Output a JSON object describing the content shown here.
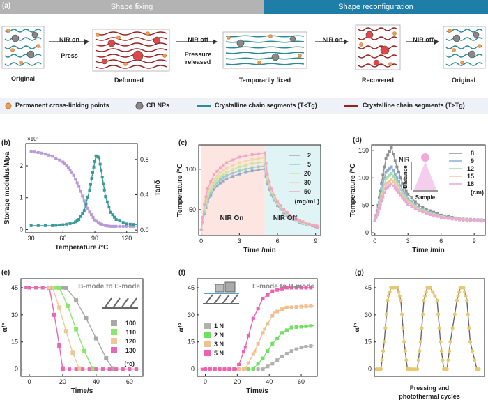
{
  "header": {
    "panel_a": "(a)",
    "left_title": "Shape fixing",
    "right_title": "Shape reconfiguration",
    "left_color": "#b3b3b3",
    "right_color": "#1e7ea8"
  },
  "schematic": {
    "stages": [
      "Original",
      "Deformed",
      "Temporarily fixed",
      "Recovered",
      "Original"
    ],
    "arrows": [
      {
        "line1": "NIR on",
        "line2": "Press"
      },
      {
        "line1": "NIR off",
        "line2": "Pressure",
        "line3": "released"
      },
      {
        "line1": "NIR on",
        "line2": ""
      },
      {
        "line1": "NIR off",
        "line2": ""
      }
    ]
  },
  "legend": {
    "items": [
      "Permanent cross-linking points",
      "CB NPs",
      "Crystalline chain segments (T<Tg)",
      "Crystalline chain segments (T>Tg)"
    ],
    "colors": [
      "#f0a050",
      "#888888",
      "#2a8c99",
      "#9a2020"
    ]
  },
  "panels": {
    "b": {
      "letter": "(b)",
      "ylabel": "Storage modulus/Mpa",
      "y2label": "Tanδ",
      "xlabel": "Temperature /°C",
      "exp": "×10³",
      "xticks": [
        "30",
        "60",
        "90",
        "120"
      ],
      "yticks": [
        "0",
        "1",
        "2"
      ],
      "y2ticks": [
        "0.0",
        "0.4",
        "0.8"
      ]
    },
    "c": {
      "letter": "(c)",
      "ylabel": "Temperature /°C",
      "xlabel": "Time /min",
      "xticks": [
        "0",
        "3",
        "6",
        "9"
      ],
      "yticks": [
        "50",
        "100"
      ],
      "on_label": "NIR On",
      "off_label": "NIR Off",
      "legend": [
        "2",
        "5",
        "20",
        "30",
        "50"
      ],
      "units": "(mg/mL)"
    },
    "d": {
      "letter": "(d)",
      "ylabel": "Temperature /°C",
      "xlabel": "Time /min",
      "xticks": [
        "0",
        "3",
        "6",
        "9"
      ],
      "yticks": [
        "0",
        "50",
        "100",
        "150"
      ],
      "legend": [
        "8",
        "9",
        "12",
        "15",
        "18"
      ],
      "units": "(cm)",
      "nir": "NIR",
      "distance": "Distance",
      "sample": "Sample"
    },
    "e": {
      "letter": "(e)",
      "ylabel": "α/°",
      "xlabel": "Time/s",
      "xticks": [
        "0",
        "20",
        "40",
        "60"
      ],
      "yticks": [
        "0",
        "15",
        "30",
        "45"
      ],
      "title": "B-mode to E-mode",
      "legend": [
        "100",
        "110",
        "120",
        "130"
      ],
      "units": "(°c)"
    },
    "f": {
      "letter": "(f)",
      "ylabel": "α/°",
      "xlabel": "Time/s",
      "xticks": [
        "0",
        "20",
        "40",
        "60"
      ],
      "yticks": [
        "0",
        "15",
        "30",
        "45"
      ],
      "title": "E-mode to B-mode",
      "legend": [
        "1 N",
        "2 N",
        "3 N",
        "5 N"
      ]
    },
    "g": {
      "letter": "(g)",
      "ylabel": "α/°",
      "yticks": [
        "0",
        "15",
        "30",
        "45"
      ],
      "caption1": "Pressing and",
      "caption2": "photothermal cycles"
    }
  },
  "chart_data": [
    {
      "panel": "b",
      "type": "line",
      "xlabel": "Temperature /°C",
      "ylabel": "Storage modulus/Mpa (×10³)",
      "y2label": "Tanδ",
      "xlim": [
        25,
        130
      ],
      "ylim": [
        -0.1,
        2.7
      ],
      "y2lim": [
        -0.03,
        0.98
      ],
      "series": [
        {
          "name": "Storage modulus",
          "axis": "left",
          "color": "#b89ad6",
          "x": [
            30,
            40,
            50,
            60,
            65,
            70,
            75,
            80,
            85,
            90,
            95,
            100,
            105,
            110,
            120,
            130
          ],
          "y": [
            2.45,
            2.4,
            2.3,
            2.12,
            1.95,
            1.7,
            1.35,
            0.9,
            0.55,
            0.3,
            0.18,
            0.12,
            0.1,
            0.1,
            0.1,
            0.1
          ]
        },
        {
          "name": "Tanδ",
          "axis": "right",
          "color": "#3a9a9a",
          "x": [
            30,
            50,
            60,
            70,
            75,
            80,
            85,
            88,
            91,
            94,
            97,
            100,
            105,
            110,
            120,
            130
          ],
          "y": [
            0.05,
            0.05,
            0.06,
            0.08,
            0.12,
            0.22,
            0.45,
            0.65,
            0.84,
            0.82,
            0.6,
            0.38,
            0.2,
            0.12,
            0.07,
            0.06
          ]
        }
      ]
    },
    {
      "panel": "c",
      "type": "line",
      "xlabel": "Time /min",
      "ylabel": "Temperature /°C",
      "xlim": [
        -0.2,
        9.4
      ],
      "ylim": [
        18,
        130
      ],
      "x": [
        0,
        0.25,
        0.5,
        1,
        1.5,
        2,
        3,
        4,
        5,
        5.2,
        5.5,
        6,
        6.5,
        7,
        7.5,
        8,
        8.5,
        9,
        9.3
      ],
      "series": [
        {
          "name": "2",
          "color": "#98a8c8",
          "y": [
            25,
            45,
            60,
            75,
            83,
            88,
            94,
            98,
            100,
            82,
            68,
            55,
            46,
            40,
            36,
            33,
            31,
            29,
            28
          ]
        },
        {
          "name": "5",
          "color": "#9ad0c8",
          "y": [
            25,
            47,
            63,
            79,
            87,
            92,
            98,
            102,
            104,
            85,
            70,
            56,
            47,
            41,
            37,
            34,
            31,
            30,
            29
          ]
        },
        {
          "name": "20",
          "color": "#c8e6a0",
          "y": [
            25,
            50,
            67,
            83,
            91,
            96,
            103,
            107,
            109,
            88,
            72,
            58,
            48,
            42,
            37,
            34,
            32,
            30,
            29
          ]
        },
        {
          "name": "30",
          "color": "#f0d6a8",
          "y": [
            25,
            53,
            71,
            87,
            96,
            101,
            108,
            112,
            114,
            91,
            74,
            59,
            49,
            43,
            38,
            35,
            32,
            30,
            29
          ]
        },
        {
          "name": "50",
          "color": "#f0a8c0",
          "y": [
            25,
            56,
            76,
            93,
            102,
            108,
            115,
            118,
            120,
            94,
            76,
            60,
            50,
            43,
            38,
            35,
            32,
            30,
            29
          ]
        }
      ]
    },
    {
      "panel": "d",
      "type": "line",
      "xlabel": "Time /min",
      "ylabel": "Temperature /°C",
      "xlim": [
        -0.3,
        10
      ],
      "ylim": [
        -5,
        160
      ],
      "x": [
        0,
        0.3,
        0.6,
        1,
        1.5,
        2,
        2.5,
        3,
        4,
        5,
        6,
        7,
        8,
        9,
        10
      ],
      "series": [
        {
          "name": "8",
          "color": "#909090",
          "y": [
            22,
            50,
            90,
            135,
            155,
            120,
            90,
            70,
            50,
            40,
            32,
            28,
            25,
            24,
            23
          ]
        },
        {
          "name": "9",
          "color": "#8ab0d8",
          "y": [
            22,
            45,
            78,
            110,
            120,
            100,
            78,
            62,
            46,
            37,
            30,
            27,
            25,
            24,
            23
          ]
        },
        {
          "name": "12",
          "color": "#a8dca8",
          "y": [
            22,
            42,
            70,
            98,
            108,
            92,
            72,
            58,
            44,
            35,
            30,
            26,
            24,
            23,
            22
          ]
        },
        {
          "name": "15",
          "color": "#f0c8a0",
          "y": [
            22,
            40,
            64,
            88,
            97,
            84,
            67,
            55,
            42,
            34,
            29,
            26,
            24,
            23,
            22
          ]
        },
        {
          "name": "18",
          "color": "#e8a8d8",
          "y": [
            22,
            38,
            58,
            80,
            89,
            78,
            63,
            52,
            40,
            33,
            28,
            25,
            23,
            22,
            21
          ]
        }
      ]
    },
    {
      "panel": "e",
      "type": "line",
      "title": "B-mode to E-mode",
      "xlabel": "Time/s",
      "ylabel": "α/°",
      "xlim": [
        -5,
        68
      ],
      "ylim": [
        -4,
        50
      ],
      "series": [
        {
          "name": "100",
          "color": "#a8a8a8",
          "x": [
            -2,
            22,
            28,
            34,
            40,
            46,
            50,
            66
          ],
          "y": [
            45,
            45,
            38,
            28,
            17,
            6,
            0,
            0
          ]
        },
        {
          "name": "110",
          "color": "#88e868",
          "x": [
            -2,
            18,
            23,
            28,
            33,
            38,
            66
          ],
          "y": [
            45,
            45,
            35,
            22,
            10,
            0,
            0
          ]
        },
        {
          "name": "120",
          "color": "#f0c898",
          "x": [
            -2,
            14,
            18,
            22,
            26,
            30,
            66
          ],
          "y": [
            45,
            45,
            34,
            21,
            9,
            0,
            0
          ]
        },
        {
          "name": "130",
          "color": "#e868b8",
          "x": [
            -2,
            12,
            15,
            18,
            20,
            66
          ],
          "y": [
            45,
            45,
            30,
            13,
            0,
            0
          ]
        }
      ]
    },
    {
      "panel": "f",
      "type": "line",
      "title": "E-mode to B-mode",
      "xlabel": "Time/s",
      "ylabel": "α/°",
      "xlim": [
        -5,
        70
      ],
      "ylim": [
        -4,
        50
      ],
      "series": [
        {
          "name": "1 N",
          "color": "#b0b0b0",
          "x": [
            -2,
            36,
            42,
            48,
            54,
            60,
            68
          ],
          "y": [
            0,
            0,
            3,
            7,
            10,
            12,
            13
          ]
        },
        {
          "name": "2 N",
          "color": "#70e060",
          "x": [
            -2,
            30,
            36,
            42,
            48,
            54,
            68
          ],
          "y": [
            0,
            0,
            6,
            14,
            20,
            23,
            24
          ]
        },
        {
          "name": "3 N",
          "color": "#f0c090",
          "x": [
            -2,
            25,
            31,
            37,
            43,
            50,
            68
          ],
          "y": [
            0,
            0,
            10,
            22,
            31,
            34,
            35
          ]
        },
        {
          "name": "5 N",
          "color": "#f060b0",
          "x": [
            -2,
            20,
            25,
            30,
            36,
            42,
            50,
            68
          ],
          "y": [
            0,
            0,
            12,
            28,
            39,
            43,
            45,
            45
          ]
        }
      ]
    },
    {
      "panel": "g",
      "type": "line",
      "ylabel": "α/°",
      "caption": "Pressing and photothermal cycles",
      "xlim": [
        0,
        100
      ],
      "ylim": [
        -4,
        50
      ],
      "series": [
        {
          "name": "cycles",
          "color": "#e8c870",
          "x": [
            2,
            6,
            9,
            12,
            15,
            21,
            24,
            27,
            30,
            33,
            39,
            42,
            45,
            48,
            51,
            57,
            60,
            63,
            66,
            69,
            75,
            78,
            81,
            84,
            87,
            93,
            96
          ],
          "y": [
            0,
            0,
            15,
            38,
            45,
            45,
            38,
            15,
            0,
            0,
            0,
            15,
            38,
            45,
            45,
            38,
            15,
            0,
            0,
            15,
            38,
            45,
            45,
            38,
            15,
            0,
            0
          ]
        }
      ]
    }
  ]
}
